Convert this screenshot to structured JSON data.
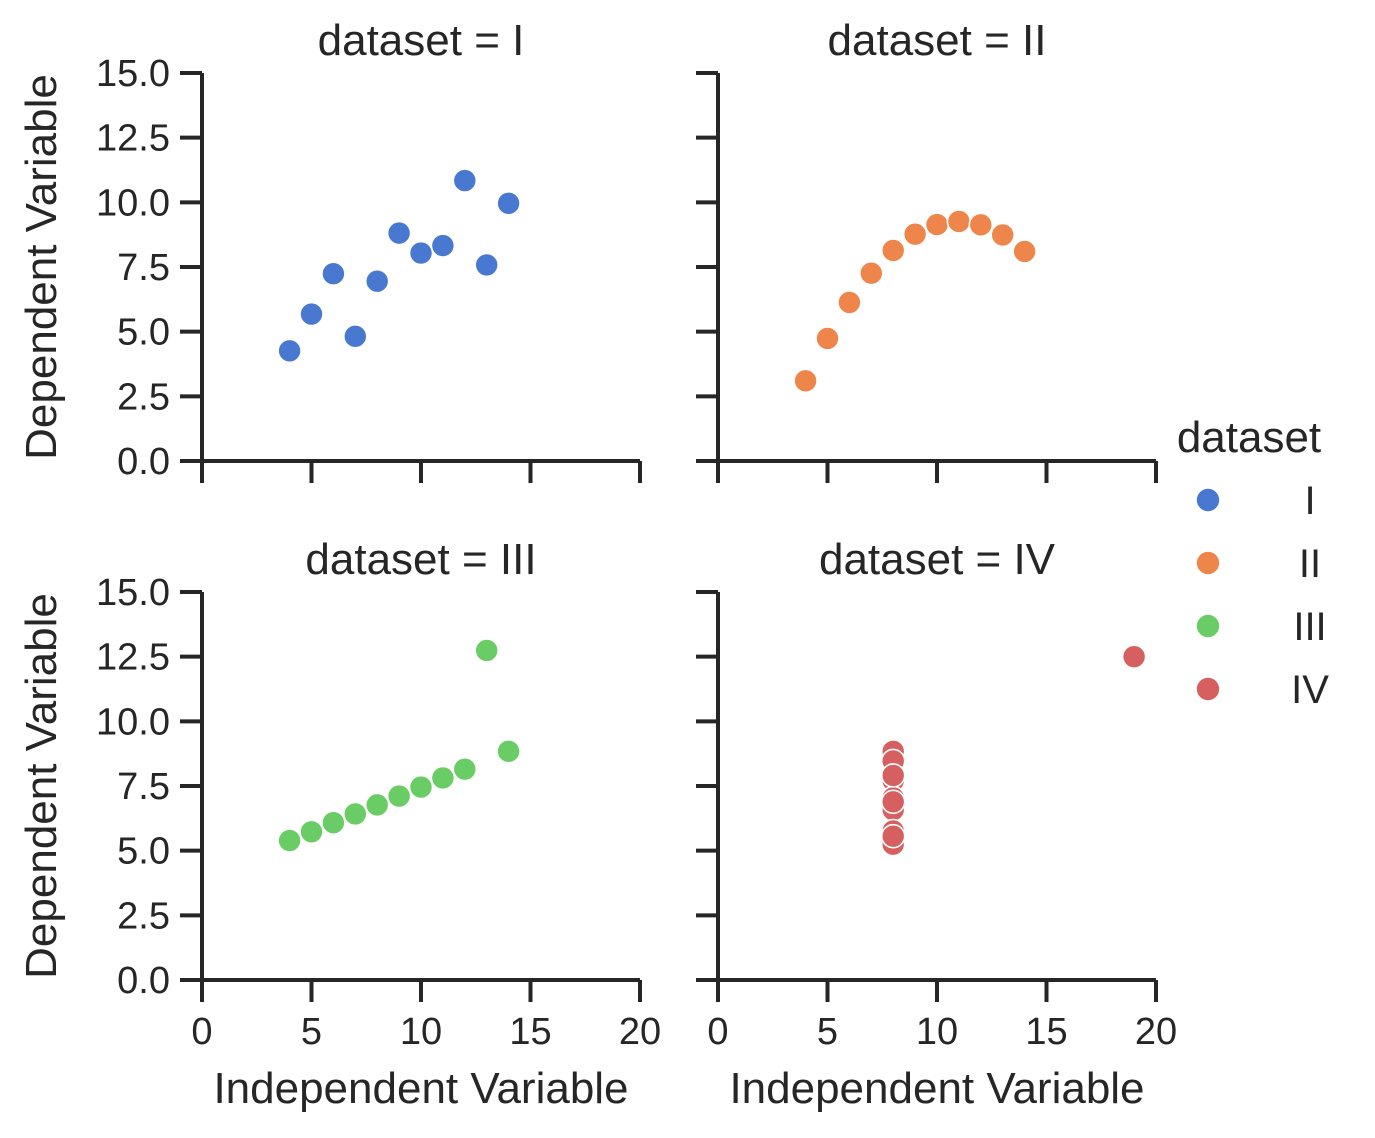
{
  "chart_data": {
    "type": "scatter",
    "facet_variable": "dataset",
    "facet_title_template": "{var} = {val}",
    "xlabel": "Independent Variable",
    "ylabel": "Dependent Variable",
    "xlim": [
      0,
      20
    ],
    "ylim": [
      0,
      15
    ],
    "xticks": [
      0,
      5,
      10,
      15,
      20
    ],
    "yticks": [
      0.0,
      2.5,
      5.0,
      7.5,
      10.0,
      12.5,
      15.0
    ],
    "ytick_format": 1,
    "grid": false,
    "legend": {
      "title": "dataset",
      "position": "right",
      "entries": [
        "I",
        "II",
        "III",
        "IV"
      ]
    },
    "series": [
      {
        "name": "I",
        "color": "#4878d0",
        "x": [
          4,
          5,
          6,
          7,
          8,
          9,
          10,
          11,
          12,
          13,
          14
        ],
        "y": [
          4.26,
          5.68,
          7.24,
          4.82,
          6.95,
          8.81,
          8.04,
          8.33,
          10.84,
          7.58,
          9.96
        ]
      },
      {
        "name": "II",
        "color": "#ee854a",
        "x": [
          4,
          5,
          6,
          7,
          8,
          9,
          10,
          11,
          12,
          13,
          14
        ],
        "y": [
          3.1,
          4.74,
          6.13,
          7.26,
          8.14,
          8.77,
          9.14,
          9.26,
          9.13,
          8.74,
          8.1
        ]
      },
      {
        "name": "III",
        "color": "#6acc64",
        "x": [
          4,
          5,
          6,
          7,
          8,
          9,
          10,
          11,
          12,
          13,
          14
        ],
        "y": [
          5.39,
          5.73,
          6.08,
          6.42,
          6.77,
          7.11,
          7.46,
          7.81,
          8.15,
          12.74,
          8.84
        ]
      },
      {
        "name": "IV",
        "color": "#d65f5f",
        "x": [
          8,
          8,
          8,
          8,
          8,
          8,
          8,
          19,
          8,
          8,
          8
        ],
        "y": [
          6.58,
          5.76,
          7.71,
          8.84,
          8.47,
          7.04,
          5.25,
          12.5,
          5.56,
          7.91,
          6.89
        ]
      }
    ]
  }
}
